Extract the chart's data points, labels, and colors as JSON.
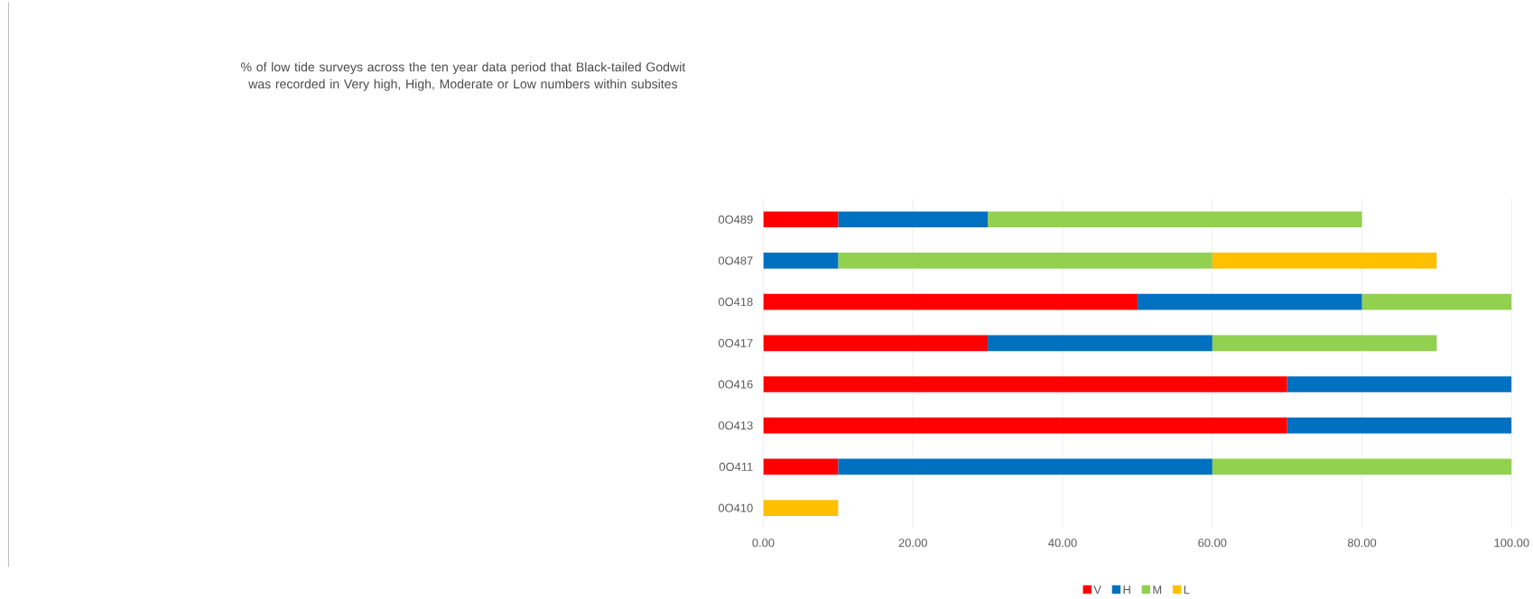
{
  "chart_data": {
    "type": "bar",
    "orientation": "horizontal",
    "stacked": true,
    "title": "% of low tide surveys across the ten year data period that Black-tailed Godwit was recorded in Very high, High, Moderate or Low numbers within subsites",
    "categories": [
      "0O489",
      "0O487",
      "0O418",
      "0O417",
      "0O416",
      "0O413",
      "0O411",
      "0O410"
    ],
    "series": [
      {
        "name": "V",
        "color": "#ff0000",
        "values": [
          10,
          0,
          50,
          30,
          70,
          70,
          10,
          0
        ]
      },
      {
        "name": "H",
        "color": "#0070c0",
        "values": [
          20,
          10,
          30,
          30,
          30,
          30,
          50,
          0
        ]
      },
      {
        "name": "M",
        "color": "#92d050",
        "values": [
          50,
          50,
          20,
          30,
          0,
          0,
          40,
          0
        ]
      },
      {
        "name": "L",
        "color": "#ffc000",
        "values": [
          0,
          30,
          0,
          0,
          0,
          0,
          0,
          10
        ]
      }
    ],
    "xlim": [
      0,
      100
    ],
    "xticks": [
      {
        "value": 0,
        "label": "0.00"
      },
      {
        "value": 20,
        "label": "20.00"
      },
      {
        "value": 40,
        "label": "40.00"
      },
      {
        "value": 60,
        "label": "60.00"
      },
      {
        "value": 80,
        "label": "80.00"
      },
      {
        "value": 100,
        "label": "100.00"
      }
    ],
    "grid": "x",
    "legend": "bottom"
  }
}
